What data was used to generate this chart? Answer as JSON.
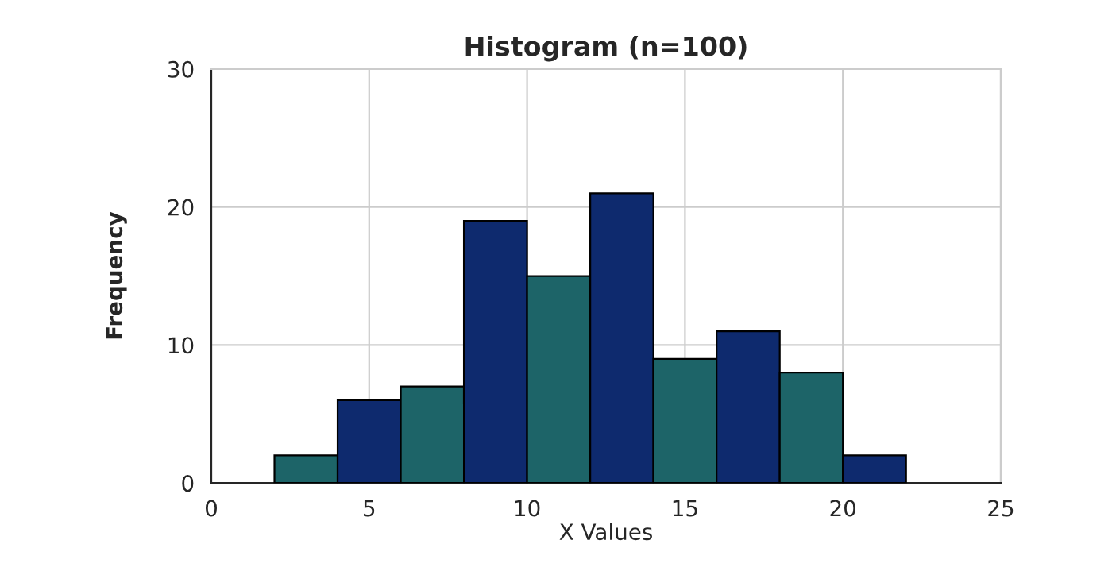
{
  "chart_data": {
    "type": "histogram",
    "title": "Histogram (n=100)",
    "xlabel": "X Values",
    "ylabel": "Frequency",
    "bins": [
      2,
      4,
      6,
      8,
      10,
      12,
      14,
      16,
      18,
      20,
      22
    ],
    "values": [
      2,
      6,
      7,
      19,
      15,
      21,
      9,
      11,
      8,
      2
    ],
    "colors": [
      "#1d6468",
      "#0e2a6e",
      "#1d6468",
      "#0e2a6e",
      "#1d6468",
      "#0e2a6e",
      "#1d6468",
      "#0e2a6e",
      "#1d6468",
      "#0e2a6e"
    ],
    "xlim": [
      0,
      25
    ],
    "xticks": [
      0,
      5,
      10,
      15,
      20,
      25
    ],
    "ylim": [
      0,
      30
    ],
    "yticks": [
      0,
      10,
      20,
      30
    ],
    "grid": true
  }
}
